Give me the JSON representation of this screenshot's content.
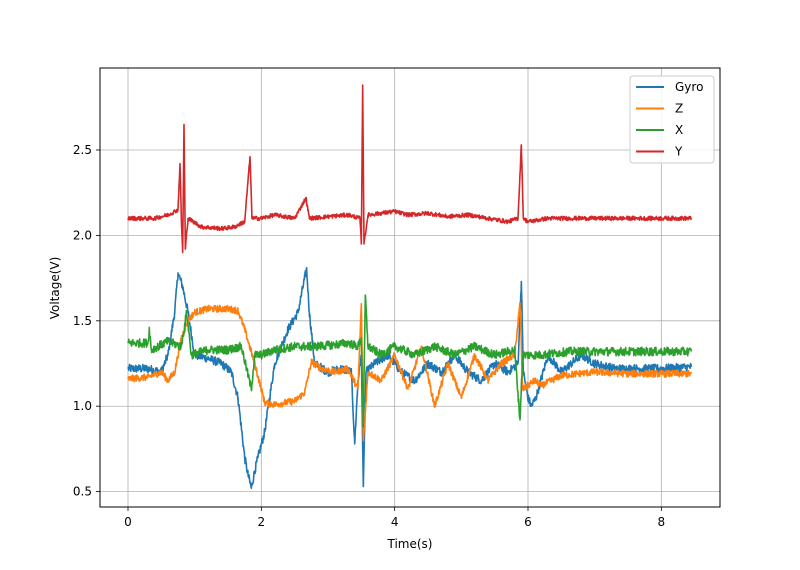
{
  "chart_data": {
    "type": "line",
    "title": "",
    "xlabel": "Time(s)",
    "ylabel": "Voltage(V)",
    "xlim": [
      -0.42,
      8.88
    ],
    "ylim": [
      0.41,
      2.98
    ],
    "xticks": [
      0,
      2,
      4,
      6,
      8
    ],
    "yticks": [
      0.5,
      1.0,
      1.5,
      2.0,
      2.5
    ],
    "xtick_labels": [
      "0",
      "2",
      "4",
      "6",
      "8"
    ],
    "ytick_labels": [
      "0.5",
      "1.0",
      "1.5",
      "2.0",
      "2.5"
    ],
    "grid": true,
    "legend_position": "top-right",
    "x_range": [
      0,
      8.45
    ],
    "series": [
      {
        "name": "Gyro",
        "color": "#1f77b4",
        "noise": 0.025,
        "points": [
          [
            0,
            1.22
          ],
          [
            0.3,
            1.22
          ],
          [
            0.5,
            1.2
          ],
          [
            0.6,
            1.3
          ],
          [
            0.7,
            1.55
          ],
          [
            0.75,
            1.78
          ],
          [
            0.82,
            1.7
          ],
          [
            0.9,
            1.55
          ],
          [
            1.0,
            1.3
          ],
          [
            1.2,
            1.28
          ],
          [
            1.4,
            1.25
          ],
          [
            1.55,
            1.2
          ],
          [
            1.65,
            1.05
          ],
          [
            1.75,
            0.7
          ],
          [
            1.8,
            0.6
          ],
          [
            1.85,
            0.52
          ],
          [
            1.9,
            0.62
          ],
          [
            1.95,
            0.7
          ],
          [
            2.05,
            0.85
          ],
          [
            2.2,
            1.25
          ],
          [
            2.4,
            1.45
          ],
          [
            2.55,
            1.55
          ],
          [
            2.65,
            1.75
          ],
          [
            2.68,
            1.8
          ],
          [
            2.72,
            1.55
          ],
          [
            2.8,
            1.25
          ],
          [
            3.0,
            1.2
          ],
          [
            3.2,
            1.22
          ],
          [
            3.35,
            1.2
          ],
          [
            3.4,
            0.78
          ],
          [
            3.45,
            1.15
          ],
          [
            3.5,
            1.3
          ],
          [
            3.53,
            0.53
          ],
          [
            3.57,
            1.2
          ],
          [
            3.7,
            1.25
          ],
          [
            3.9,
            1.3
          ],
          [
            4.1,
            1.2
          ],
          [
            4.3,
            1.15
          ],
          [
            4.5,
            1.25
          ],
          [
            4.7,
            1.2
          ],
          [
            4.9,
            1.3
          ],
          [
            5.1,
            1.2
          ],
          [
            5.3,
            1.15
          ],
          [
            5.5,
            1.25
          ],
          [
            5.7,
            1.2
          ],
          [
            5.85,
            1.25
          ],
          [
            5.9,
            1.73
          ],
          [
            5.93,
            1.2
          ],
          [
            6.0,
            1.05
          ],
          [
            6.05,
            1.0
          ],
          [
            6.12,
            1.05
          ],
          [
            6.3,
            1.3
          ],
          [
            6.5,
            1.2
          ],
          [
            6.8,
            1.3
          ],
          [
            7.0,
            1.25
          ],
          [
            7.3,
            1.22
          ],
          [
            7.6,
            1.22
          ],
          [
            8.0,
            1.22
          ],
          [
            8.45,
            1.23
          ]
        ]
      },
      {
        "name": "Z",
        "color": "#ff7f0e",
        "noise": 0.02,
        "points": [
          [
            0,
            1.16
          ],
          [
            0.3,
            1.17
          ],
          [
            0.5,
            1.2
          ],
          [
            0.6,
            1.15
          ],
          [
            0.7,
            1.2
          ],
          [
            0.8,
            1.4
          ],
          [
            0.85,
            1.45
          ],
          [
            0.9,
            1.5
          ],
          [
            1.0,
            1.55
          ],
          [
            1.2,
            1.57
          ],
          [
            1.5,
            1.57
          ],
          [
            1.65,
            1.56
          ],
          [
            1.75,
            1.45
          ],
          [
            1.9,
            1.25
          ],
          [
            2.0,
            1.1
          ],
          [
            2.05,
            1.02
          ],
          [
            2.2,
            1.01
          ],
          [
            2.5,
            1.03
          ],
          [
            2.65,
            1.08
          ],
          [
            2.75,
            1.26
          ],
          [
            2.9,
            1.22
          ],
          [
            3.1,
            1.2
          ],
          [
            3.3,
            1.22
          ],
          [
            3.45,
            1.1
          ],
          [
            3.5,
            1.6
          ],
          [
            3.53,
            0.8
          ],
          [
            3.6,
            1.2
          ],
          [
            3.8,
            1.15
          ],
          [
            4.0,
            1.3
          ],
          [
            4.2,
            1.1
          ],
          [
            4.4,
            1.35
          ],
          [
            4.6,
            1.0
          ],
          [
            4.8,
            1.25
          ],
          [
            5.0,
            1.05
          ],
          [
            5.2,
            1.3
          ],
          [
            5.4,
            1.15
          ],
          [
            5.6,
            1.25
          ],
          [
            5.8,
            1.3
          ],
          [
            5.88,
            1.6
          ],
          [
            5.92,
            1.1
          ],
          [
            6.1,
            1.15
          ],
          [
            6.2,
            1.12
          ],
          [
            6.5,
            1.18
          ],
          [
            7.0,
            1.2
          ],
          [
            7.5,
            1.19
          ],
          [
            8.0,
            1.19
          ],
          [
            8.45,
            1.19
          ]
        ]
      },
      {
        "name": "X",
        "color": "#2ca02c",
        "noise": 0.025,
        "points": [
          [
            0,
            1.37
          ],
          [
            0.3,
            1.37
          ],
          [
            0.32,
            1.45
          ],
          [
            0.35,
            1.33
          ],
          [
            0.6,
            1.38
          ],
          [
            0.8,
            1.35
          ],
          [
            0.88,
            1.55
          ],
          [
            0.95,
            1.3
          ],
          [
            1.2,
            1.33
          ],
          [
            1.5,
            1.33
          ],
          [
            1.7,
            1.35
          ],
          [
            1.85,
            1.1
          ],
          [
            1.9,
            1.3
          ],
          [
            2.0,
            1.3
          ],
          [
            2.2,
            1.33
          ],
          [
            2.5,
            1.35
          ],
          [
            2.8,
            1.35
          ],
          [
            3.1,
            1.36
          ],
          [
            3.3,
            1.37
          ],
          [
            3.45,
            1.35
          ],
          [
            3.5,
            1.4
          ],
          [
            3.53,
            0.88
          ],
          [
            3.56,
            1.65
          ],
          [
            3.6,
            1.35
          ],
          [
            3.8,
            1.3
          ],
          [
            4.0,
            1.35
          ],
          [
            4.3,
            1.3
          ],
          [
            4.6,
            1.35
          ],
          [
            4.9,
            1.3
          ],
          [
            5.2,
            1.35
          ],
          [
            5.5,
            1.3
          ],
          [
            5.8,
            1.33
          ],
          [
            5.88,
            0.92
          ],
          [
            5.92,
            1.3
          ],
          [
            6.2,
            1.3
          ],
          [
            6.6,
            1.32
          ],
          [
            7.0,
            1.32
          ],
          [
            7.5,
            1.32
          ],
          [
            8.0,
            1.32
          ],
          [
            8.45,
            1.32
          ]
        ]
      },
      {
        "name": "Y",
        "color": "#d62728",
        "noise": 0.012,
        "points": [
          [
            0,
            2.1
          ],
          [
            0.4,
            2.1
          ],
          [
            0.6,
            2.12
          ],
          [
            0.75,
            2.15
          ],
          [
            0.78,
            2.42
          ],
          [
            0.8,
            2.1
          ],
          [
            0.82,
            1.9
          ],
          [
            0.84,
            2.65
          ],
          [
            0.86,
            1.92
          ],
          [
            0.9,
            2.1
          ],
          [
            1.1,
            2.05
          ],
          [
            1.4,
            2.04
          ],
          [
            1.6,
            2.05
          ],
          [
            1.75,
            2.08
          ],
          [
            1.83,
            2.46
          ],
          [
            1.86,
            2.1
          ],
          [
            2.0,
            2.1
          ],
          [
            2.2,
            2.12
          ],
          [
            2.5,
            2.1
          ],
          [
            2.67,
            2.22
          ],
          [
            2.72,
            2.1
          ],
          [
            3.0,
            2.11
          ],
          [
            3.3,
            2.12
          ],
          [
            3.48,
            2.1
          ],
          [
            3.5,
            1.95
          ],
          [
            3.52,
            2.88
          ],
          [
            3.54,
            1.95
          ],
          [
            3.6,
            2.12
          ],
          [
            3.8,
            2.13
          ],
          [
            4.0,
            2.14
          ],
          [
            4.2,
            2.12
          ],
          [
            4.5,
            2.13
          ],
          [
            4.8,
            2.11
          ],
          [
            5.1,
            2.12
          ],
          [
            5.4,
            2.1
          ],
          [
            5.7,
            2.08
          ],
          [
            5.85,
            2.1
          ],
          [
            5.9,
            2.53
          ],
          [
            5.93,
            2.1
          ],
          [
            6.0,
            2.08
          ],
          [
            6.3,
            2.1
          ],
          [
            6.8,
            2.1
          ],
          [
            7.3,
            2.1
          ],
          [
            7.8,
            2.1
          ],
          [
            8.45,
            2.1
          ]
        ]
      }
    ]
  }
}
